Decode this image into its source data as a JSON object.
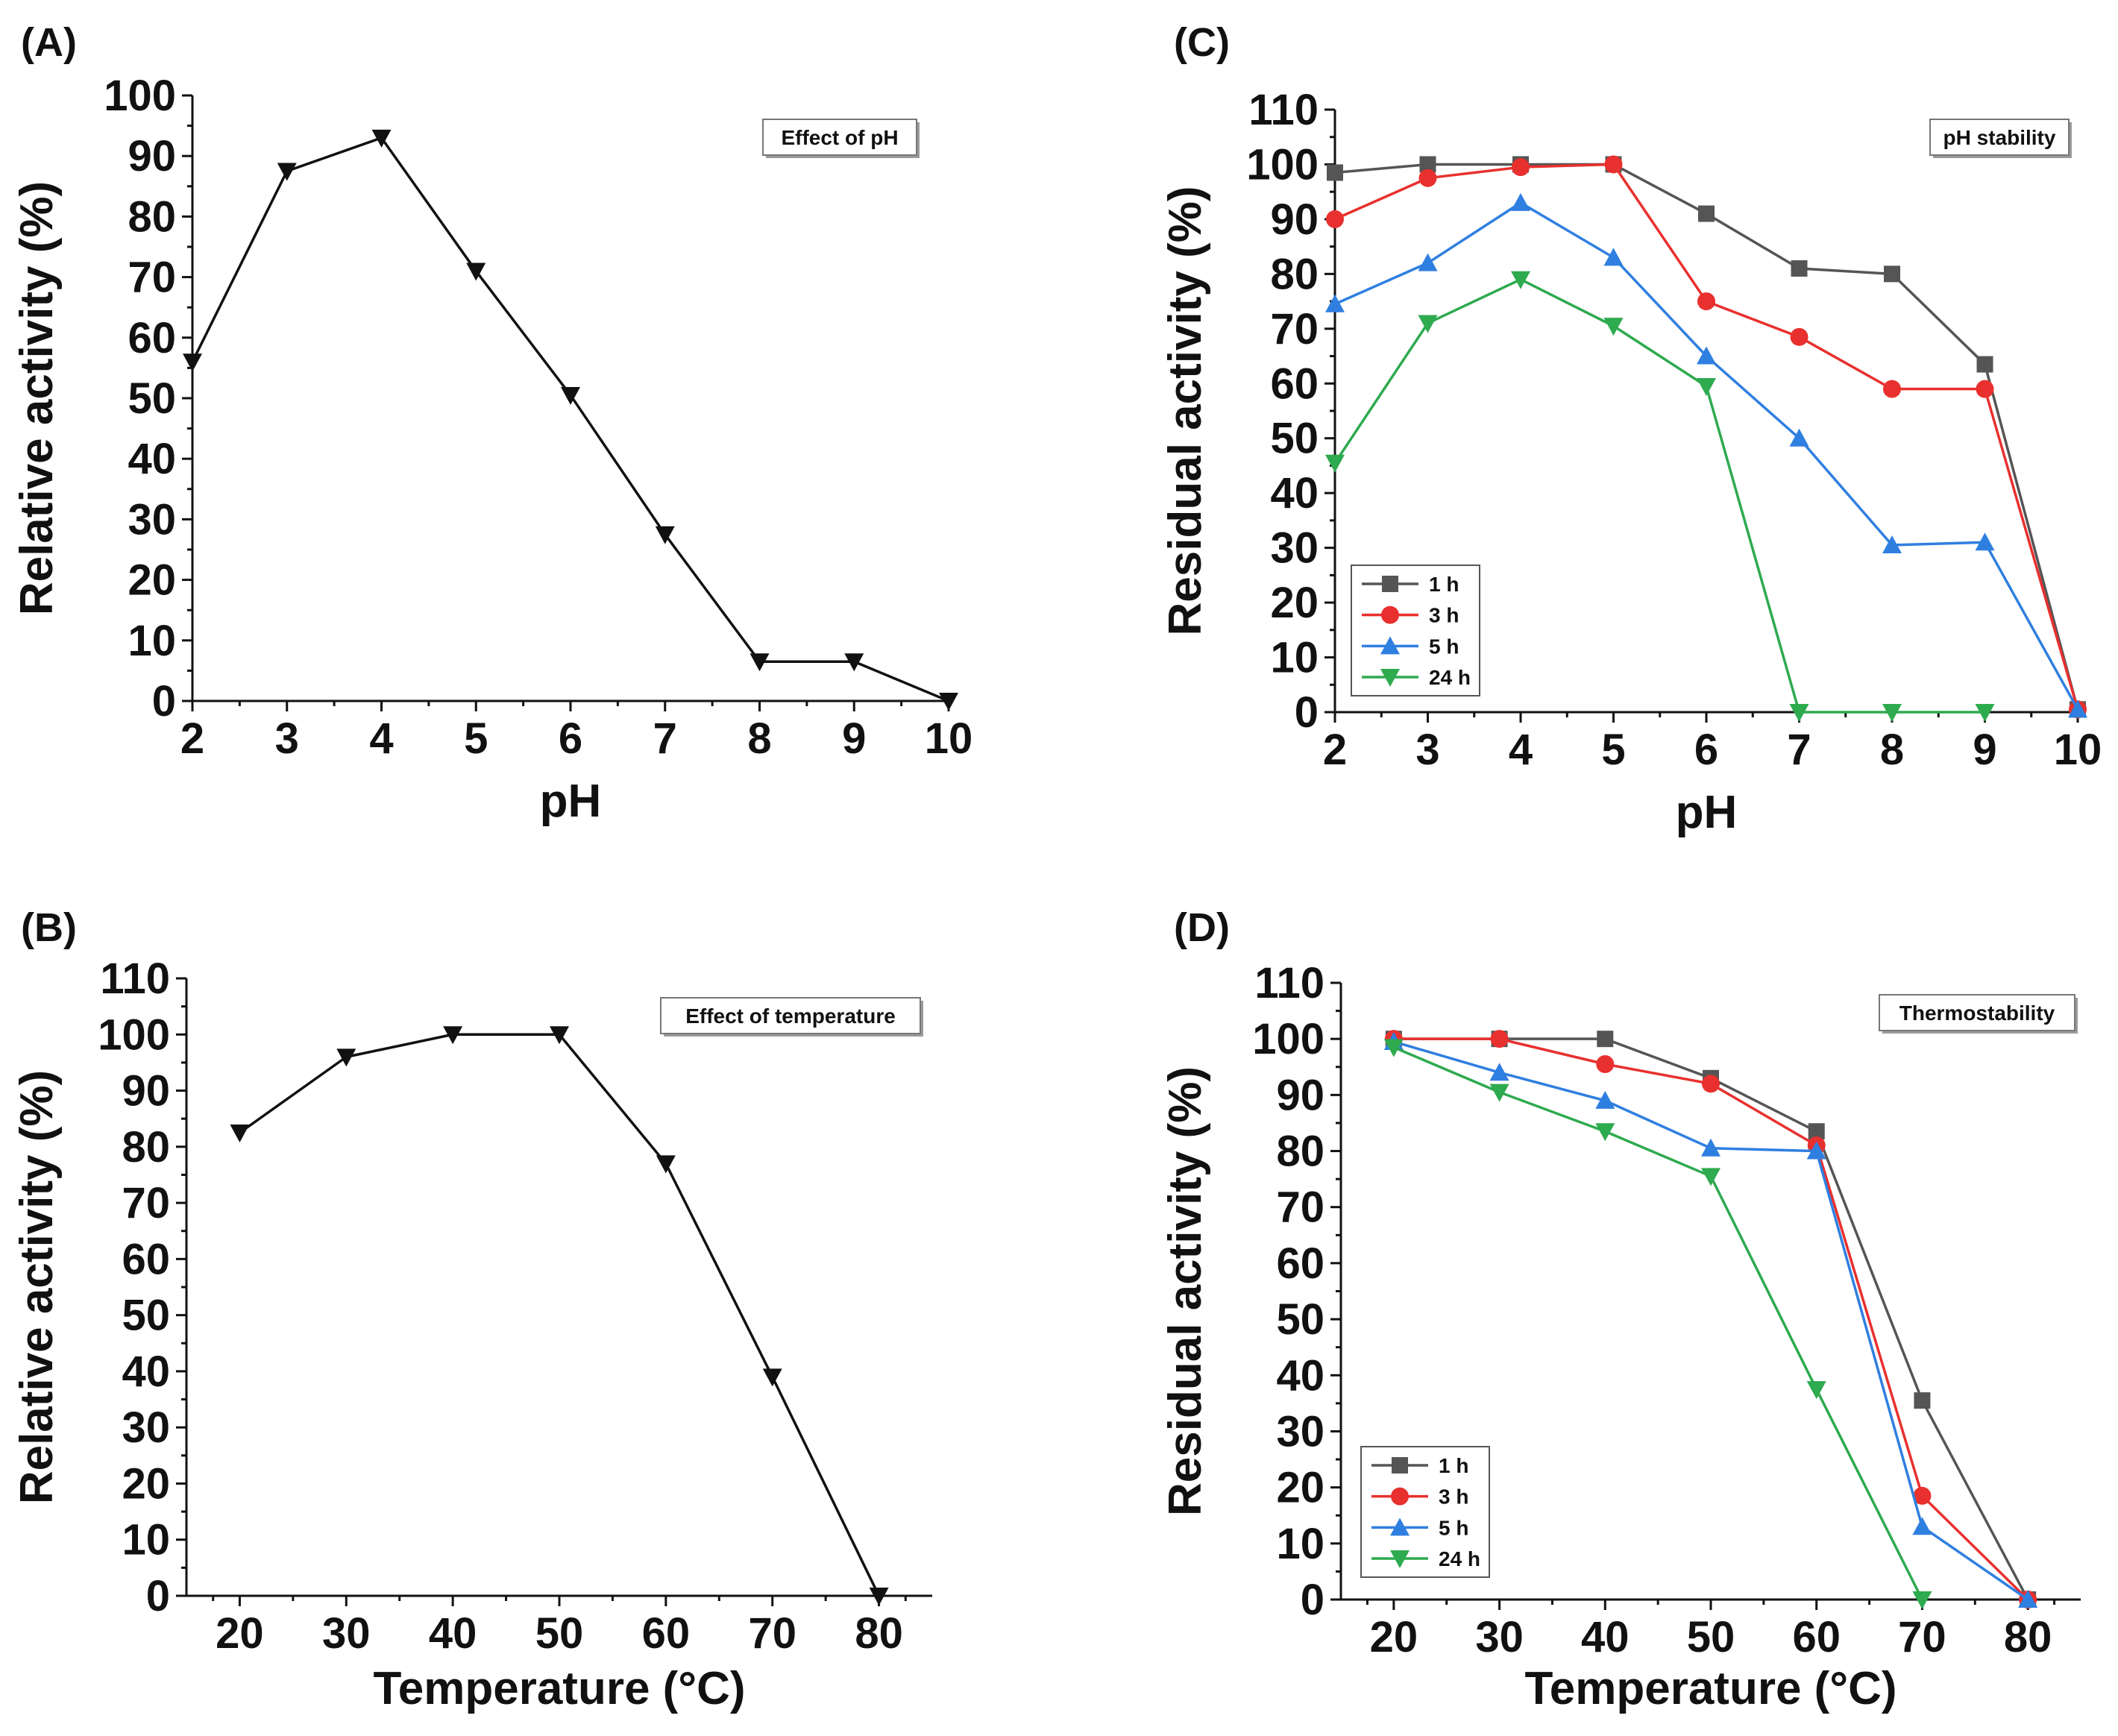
{
  "chart_data": [
    {
      "id": "A",
      "panel_label": "(A)",
      "type": "line",
      "title": "Effect of pH",
      "xlabel": "pH",
      "ylabel": "Relative activity (%)",
      "xlim": [
        2,
        10
      ],
      "ylim": [
        0,
        100
      ],
      "xticks": [
        2,
        3,
        4,
        5,
        6,
        7,
        8,
        9,
        10
      ],
      "yticks": [
        0,
        10,
        20,
        30,
        40,
        50,
        60,
        70,
        80,
        90,
        100
      ],
      "legend": null,
      "series": [
        {
          "name": "Effect of pH",
          "color": "#111111",
          "marker": "triangle-down",
          "x": [
            2,
            3,
            4,
            5,
            6,
            7,
            8,
            9,
            10
          ],
          "values": [
            56,
            87.5,
            93,
            71,
            50.5,
            27.5,
            6.5,
            6.5,
            0
          ]
        }
      ]
    },
    {
      "id": "B",
      "panel_label": "(B)",
      "type": "line",
      "title": "Effect of temperature",
      "xlabel": "Temperature (°C)",
      "ylabel": "Relative activity (%)",
      "xlim": [
        15,
        85
      ],
      "ylim": [
        0,
        110
      ],
      "xticks": [
        20,
        30,
        40,
        50,
        60,
        70,
        80
      ],
      "yticks": [
        0,
        10,
        20,
        30,
        40,
        50,
        60,
        70,
        80,
        90,
        100,
        110
      ],
      "legend": null,
      "series": [
        {
          "name": "Effect of temperature",
          "color": "#111111",
          "marker": "triangle-down",
          "x": [
            20,
            30,
            40,
            50,
            60,
            70,
            80
          ],
          "values": [
            82.5,
            96,
            100,
            100,
            77,
            39,
            0
          ]
        }
      ]
    },
    {
      "id": "C",
      "panel_label": "(C)",
      "type": "line",
      "title": "pH stability",
      "xlabel": "pH",
      "ylabel": "Residual activity (%)",
      "xlim": [
        2,
        10
      ],
      "ylim": [
        0,
        110
      ],
      "xticks": [
        2,
        3,
        4,
        5,
        6,
        7,
        8,
        9,
        10
      ],
      "yticks": [
        0,
        10,
        20,
        30,
        40,
        50,
        60,
        70,
        80,
        90,
        100,
        110
      ],
      "legend": "bottom-left",
      "series": [
        {
          "name": "1 h",
          "color": "#555555",
          "marker": "square",
          "x": [
            2,
            3,
            4,
            5,
            6,
            7,
            8,
            9,
            10
          ],
          "values": [
            98.5,
            100,
            100,
            100,
            91,
            81,
            80,
            63.5,
            0.5
          ]
        },
        {
          "name": "3 h",
          "color": "#e8302e",
          "marker": "circle",
          "x": [
            2,
            3,
            4,
            5,
            6,
            7,
            8,
            9,
            10
          ],
          "values": [
            90,
            97.5,
            99.5,
            100,
            75,
            68.5,
            59,
            59,
            0.5
          ]
        },
        {
          "name": "5 h",
          "color": "#2f7fe0",
          "marker": "triangle-up",
          "x": [
            2,
            3,
            4,
            5,
            6,
            7,
            8,
            9,
            10
          ],
          "values": [
            74.5,
            82,
            93,
            83,
            65,
            50,
            30.5,
            31,
            0.5
          ]
        },
        {
          "name": "24 h",
          "color": "#2eaa4f",
          "marker": "triangle-down",
          "x": [
            2,
            3,
            4,
            5,
            6,
            7,
            8,
            9
          ],
          "values": [
            45.5,
            71,
            79,
            70.5,
            59.5,
            0,
            0,
            0
          ]
        }
      ]
    },
    {
      "id": "D",
      "panel_label": "(D)",
      "type": "line",
      "title": "Thermostability",
      "xlabel": "Temperature (°C)",
      "ylabel": "Residual activity (%)",
      "xlim": [
        15,
        85
      ],
      "ylim": [
        0,
        110
      ],
      "xticks": [
        20,
        30,
        40,
        50,
        60,
        70,
        80
      ],
      "yticks": [
        0,
        10,
        20,
        30,
        40,
        50,
        60,
        70,
        80,
        90,
        100,
        110
      ],
      "legend": "bottom-left",
      "series": [
        {
          "name": "1 h",
          "color": "#555555",
          "marker": "square",
          "x": [
            20,
            30,
            40,
            50,
            60,
            70,
            80
          ],
          "values": [
            100,
            100,
            100,
            93,
            83.5,
            35.5,
            0
          ]
        },
        {
          "name": "3 h",
          "color": "#e8302e",
          "marker": "circle",
          "x": [
            20,
            30,
            40,
            50,
            60,
            70,
            80
          ],
          "values": [
            100,
            100,
            95.5,
            92,
            81,
            18.5,
            0
          ]
        },
        {
          "name": "5 h",
          "color": "#2f7fe0",
          "marker": "triangle-up",
          "x": [
            20,
            30,
            40,
            50,
            60,
            70,
            80
          ],
          "values": [
            99.5,
            94,
            89,
            80.5,
            80,
            13,
            0
          ]
        },
        {
          "name": "24 h",
          "color": "#2eaa4f",
          "marker": "triangle-down",
          "x": [
            20,
            30,
            40,
            50,
            60,
            70
          ],
          "values": [
            98.5,
            90.5,
            83.5,
            75.5,
            37.5,
            0
          ]
        }
      ]
    }
  ]
}
